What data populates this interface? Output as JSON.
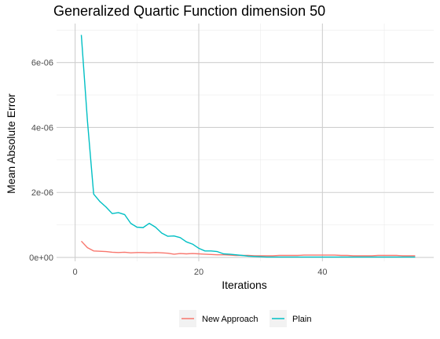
{
  "chart_data": {
    "type": "line",
    "title": "Generalized Quartic Function dimension 50",
    "xlabel": "Iterations",
    "ylabel": "Mean Absolute Error",
    "xlim": [
      -3,
      58
    ],
    "ylim": [
      -1.2e-07,
      7.2e-06
    ],
    "x_ticks": [
      0,
      20,
      40
    ],
    "x_minor_ticks": [
      10,
      30,
      50
    ],
    "y_ticks": [
      0,
      2e-06,
      4e-06,
      6e-06
    ],
    "y_tick_labels": [
      "0e+00",
      "2e-06",
      "4e-06",
      "6e-06"
    ],
    "y_minor_ticks": [
      1e-06,
      3e-06,
      5e-06,
      7e-06
    ],
    "grid": true,
    "legend": {
      "position": "bottom"
    },
    "x": [
      1,
      2,
      3,
      4,
      5,
      6,
      7,
      8,
      9,
      10,
      11,
      12,
      13,
      14,
      15,
      16,
      17,
      18,
      19,
      20,
      21,
      22,
      23,
      24,
      25,
      26,
      27,
      28,
      29,
      30,
      31,
      32,
      33,
      34,
      35,
      36,
      37,
      38,
      39,
      40,
      41,
      42,
      43,
      44,
      45,
      46,
      47,
      48,
      49,
      50,
      51,
      52,
      53,
      54,
      55
    ],
    "series": [
      {
        "name": "New Approach",
        "color": "#F8766D",
        "values": [
          5e-07,
          3e-07,
          2e-07,
          1.9e-07,
          1.8e-07,
          1.6e-07,
          1.5e-07,
          1.6e-07,
          1.4e-07,
          1.5e-07,
          1.5e-07,
          1.4e-07,
          1.5e-07,
          1.4e-07,
          1.3e-07,
          1e-07,
          1.2e-07,
          1.1e-07,
          1.2e-07,
          1.1e-07,
          1e-07,
          9e-08,
          8e-08,
          8e-08,
          7e-08,
          6e-08,
          6e-08,
          6e-08,
          5e-08,
          5e-08,
          5e-08,
          5e-08,
          6e-08,
          6e-08,
          6e-08,
          6e-08,
          7e-08,
          7e-08,
          7e-08,
          7e-08,
          7e-08,
          7e-08,
          6e-08,
          6e-08,
          5e-08,
          5e-08,
          5e-08,
          5e-08,
          6e-08,
          6e-08,
          6e-08,
          6e-08,
          5e-08,
          5e-08,
          5e-08
        ]
      },
      {
        "name": "Plain",
        "color": "#00BFC4",
        "values": [
          6.85e-06,
          4.2e-06,
          1.95e-06,
          1.72e-06,
          1.55e-06,
          1.35e-06,
          1.38e-06,
          1.32e-06,
          1.05e-06,
          9.3e-07,
          9.2e-07,
          1.05e-06,
          9.3e-07,
          7.5e-07,
          6.5e-07,
          6.6e-07,
          6.1e-07,
          4.8e-07,
          4.1e-07,
          2.8e-07,
          2e-07,
          2e-07,
          1.8e-07,
          1.1e-07,
          1e-07,
          8e-08,
          6e-08,
          4e-08,
          3e-08,
          2e-08,
          1e-08,
          1e-08,
          1e-08,
          1e-08,
          1e-08,
          1e-08,
          1e-08,
          1e-08,
          1e-08,
          1e-08,
          1e-08,
          1e-08,
          1e-08,
          1e-08,
          1e-08,
          1e-08,
          1e-08,
          1e-08,
          1e-08,
          1e-08,
          1e-08,
          1e-08,
          1e-08,
          1e-08,
          1e-08
        ]
      }
    ]
  }
}
